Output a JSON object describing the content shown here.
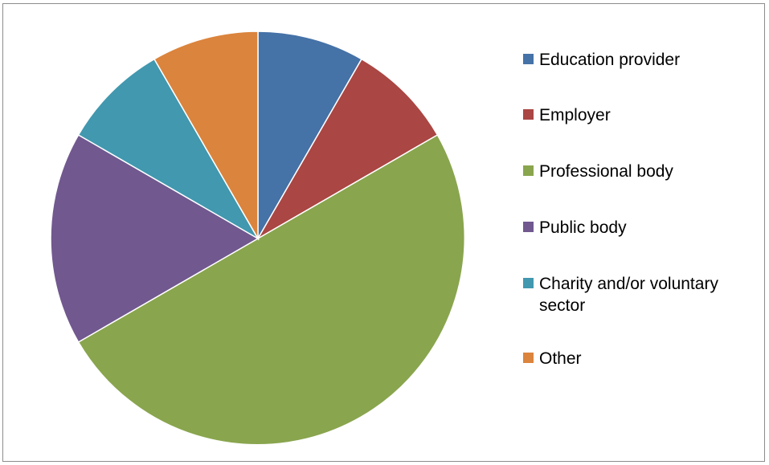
{
  "chart_data": {
    "type": "pie",
    "legend_position": "right",
    "slices": [
      {
        "label": "Education provider",
        "label_lines": [
          "Education provider"
        ],
        "value": 1,
        "color": "#4572A7"
      },
      {
        "label": "Employer",
        "label_lines": [
          "Employer"
        ],
        "value": 1,
        "color": "#AA4643"
      },
      {
        "label": "Professional body",
        "label_lines": [
          "Professional body"
        ],
        "value": 6,
        "color": "#89A54E"
      },
      {
        "label": "Public body",
        "label_lines": [
          "Public body"
        ],
        "value": 2,
        "color": "#71588F"
      },
      {
        "label": "Charity and/or voluntary sector",
        "label_lines": [
          "Charity and/or voluntary",
          "sector"
        ],
        "value": 1,
        "color": "#4198AF"
      },
      {
        "label": "Other",
        "label_lines": [
          "Other"
        ],
        "value": 1,
        "color": "#DB843D"
      }
    ]
  }
}
